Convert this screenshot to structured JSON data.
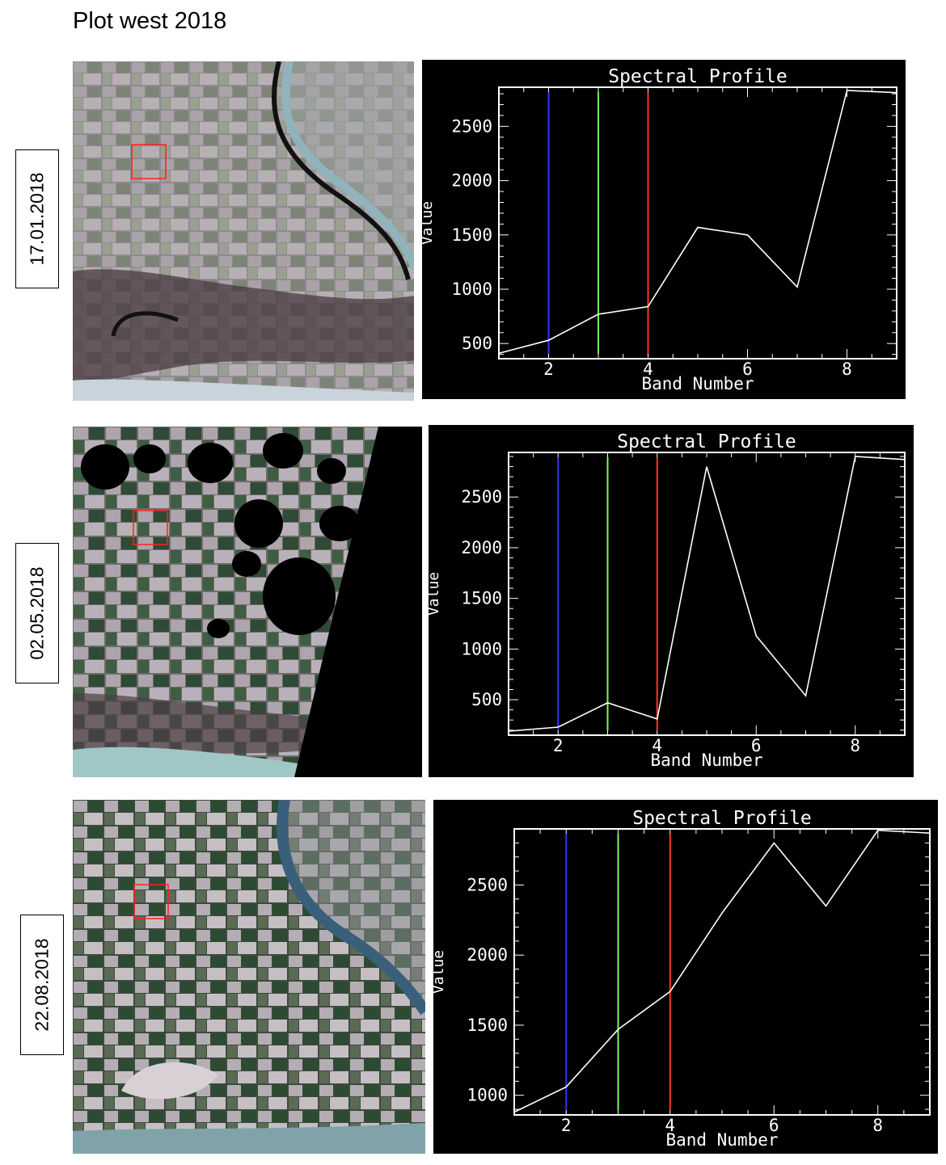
{
  "page": {
    "title": "Plot west 2018"
  },
  "panels": [
    {
      "date": "17.01.2018"
    },
    {
      "date": "02.05.2018"
    },
    {
      "date": "22.08.2018"
    }
  ],
  "colors": {
    "blue_band": "#3333ff",
    "green_band": "#77ff55",
    "red_band": "#ff3322",
    "profile": "#ffffff",
    "plot_bg": "#000000",
    "roi_box": "#ff2020"
  },
  "chart_data": [
    {
      "type": "line",
      "title": "Spectral Profile",
      "xlabel": "Band Number",
      "ylabel": "Value",
      "x": [
        1,
        2,
        3,
        4,
        5,
        6,
        7,
        8,
        9
      ],
      "values": [
        410,
        530,
        770,
        840,
        1570,
        1500,
        1020,
        2830,
        2810
      ],
      "xlim": [
        1,
        9
      ],
      "ylim": [
        360,
        2860
      ],
      "xticks": [
        2,
        4,
        6,
        8
      ],
      "yticks": [
        500,
        1000,
        1500,
        2000,
        2500
      ],
      "band_markers": [
        2,
        3,
        4
      ]
    },
    {
      "type": "line",
      "title": "Spectral Profile",
      "xlabel": "Band Number",
      "ylabel": "Value",
      "x": [
        1,
        2,
        3,
        4,
        5,
        6,
        7,
        8,
        9
      ],
      "values": [
        190,
        230,
        470,
        310,
        2800,
        1130,
        540,
        2900,
        2870
      ],
      "xlim": [
        1,
        9
      ],
      "ylim": [
        150,
        2940
      ],
      "xticks": [
        2,
        4,
        6,
        8
      ],
      "yticks": [
        500,
        1000,
        1500,
        2000,
        2500
      ],
      "band_markers": [
        2,
        3,
        4
      ]
    },
    {
      "type": "line",
      "title": "Spectral Profile",
      "xlabel": "Band Number",
      "ylabel": "Value",
      "x": [
        1,
        2,
        3,
        4,
        5,
        6,
        7,
        8,
        9
      ],
      "values": [
        880,
        1060,
        1470,
        1740,
        2300,
        2800,
        2350,
        2890,
        2870
      ],
      "xlim": [
        1,
        9
      ],
      "ylim": [
        860,
        2900
      ],
      "xticks": [
        2,
        4,
        6,
        8
      ],
      "yticks": [
        1000,
        1500,
        2000,
        2500
      ],
      "band_markers": [
        2,
        3,
        4
      ]
    }
  ]
}
